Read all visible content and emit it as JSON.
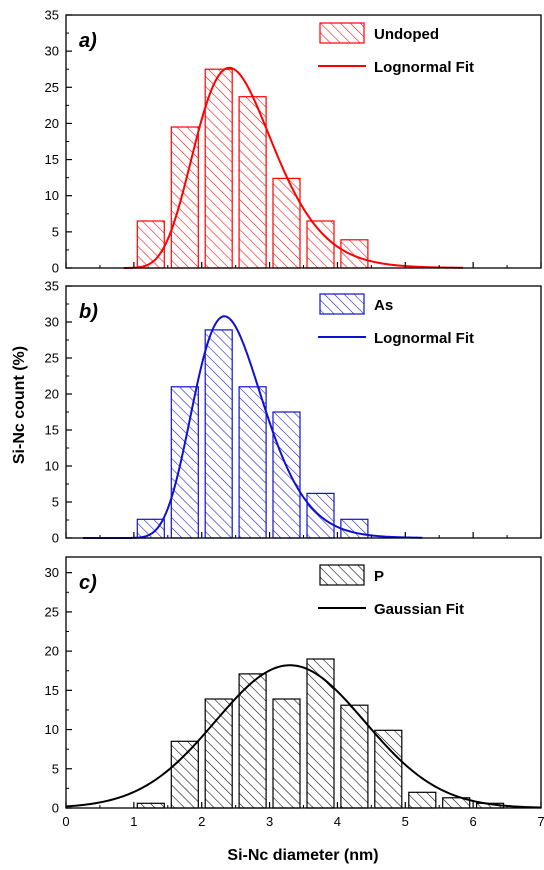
{
  "chart_data": {
    "type": "bar",
    "xlabel": "Si-Nc diameter (nm)",
    "ylabel": "Si-Nc count (%)",
    "xlim": [
      0,
      7
    ],
    "xticks": [
      "0",
      "1",
      "2",
      "3",
      "4",
      "5",
      "6",
      "7"
    ],
    "panels": [
      {
        "label": "a)",
        "color": "#ff0000",
        "ylim": [
          0,
          35
        ],
        "yticks": [
          "0",
          "5",
          "10",
          "15",
          "20",
          "25",
          "30",
          "35"
        ],
        "legend": {
          "bars": "Undoped",
          "fit": "Lognormal Fit"
        },
        "fit_type": "lognormal",
        "fit_params": {
          "amplitude": 27.7,
          "median": 2.55,
          "sigma": 0.24,
          "x_start": 0.85,
          "x_end": 5.85
        },
        "bars": [
          {
            "x": 1.25,
            "value": 6.5
          },
          {
            "x": 1.75,
            "value": 19.5
          },
          {
            "x": 2.25,
            "value": 27.5
          },
          {
            "x": 2.75,
            "value": 23.7
          },
          {
            "x": 3.25,
            "value": 12.4
          },
          {
            "x": 3.75,
            "value": 6.5
          },
          {
            "x": 4.25,
            "value": 3.9
          }
        ]
      },
      {
        "label": "b)",
        "color": "#1010d0",
        "ylim": [
          0,
          35
        ],
        "yticks": [
          "0",
          "5",
          "10",
          "15",
          "20",
          "25",
          "30",
          "35"
        ],
        "legend": {
          "bars": "As",
          "fit": "Lognormal Fit"
        },
        "fit_type": "lognormal",
        "fit_params": {
          "amplitude": 30.8,
          "median": 2.45,
          "sigma": 0.22,
          "x_start": 0.25,
          "x_end": 5.25
        },
        "bars": [
          {
            "x": 1.25,
            "value": 2.6
          },
          {
            "x": 1.75,
            "value": 21.0
          },
          {
            "x": 2.25,
            "value": 28.9
          },
          {
            "x": 2.75,
            "value": 21.0
          },
          {
            "x": 3.25,
            "value": 17.5
          },
          {
            "x": 3.75,
            "value": 6.2
          },
          {
            "x": 4.25,
            "value": 2.6
          }
        ]
      },
      {
        "label": "c)",
        "color": "#000000",
        "ylim": [
          0,
          32
        ],
        "yticks": [
          "0",
          "5",
          "10",
          "15",
          "20",
          "25",
          "30"
        ],
        "legend": {
          "bars": "P",
          "fit": "Gaussian Fit"
        },
        "fit_type": "gaussian",
        "fit_params": {
          "amplitude": 18.2,
          "center": 3.3,
          "sigma": 1.1,
          "x_start": 0.0,
          "x_end": 7.0
        },
        "bars": [
          {
            "x": 1.25,
            "value": 0.6
          },
          {
            "x": 1.75,
            "value": 8.5
          },
          {
            "x": 2.25,
            "value": 13.9
          },
          {
            "x": 2.75,
            "value": 17.1
          },
          {
            "x": 3.25,
            "value": 13.9
          },
          {
            "x": 3.75,
            "value": 19.0
          },
          {
            "x": 4.25,
            "value": 13.1
          },
          {
            "x": 4.75,
            "value": 9.9
          },
          {
            "x": 5.25,
            "value": 2.0
          },
          {
            "x": 5.75,
            "value": 1.3
          },
          {
            "x": 6.25,
            "value": 0.6
          }
        ]
      }
    ]
  }
}
